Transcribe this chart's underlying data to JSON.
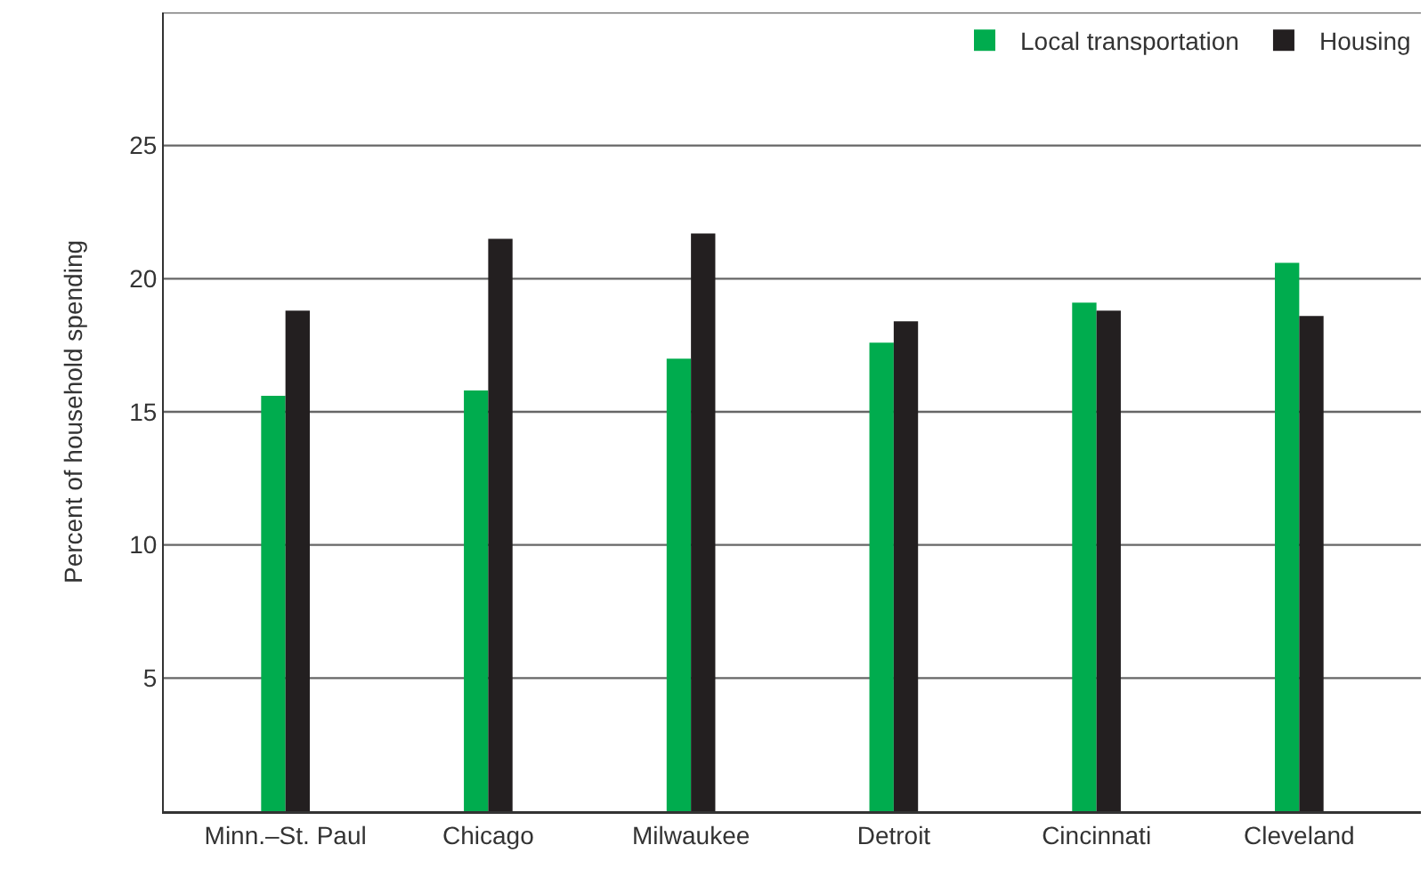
{
  "chart_data": {
    "type": "bar",
    "ylabel": "Percent of household spending",
    "categories": [
      "Minn.–St. Paul",
      "Chicago",
      "Milwaukee",
      "Detroit",
      "Cincinnati",
      "Cleveland"
    ],
    "series": [
      {
        "name": "Local transportation",
        "color": "#00ac4e",
        "values": [
          15.6,
          15.8,
          17.0,
          17.6,
          19.1,
          20.6
        ]
      },
      {
        "name": "Housing",
        "color": "#231f20",
        "values": [
          18.8,
          21.5,
          21.7,
          18.4,
          18.8,
          18.6
        ]
      }
    ],
    "ylim": [
      0,
      30
    ],
    "yticks": [
      5,
      10,
      15,
      20,
      25,
      {
        "value": 30,
        "label": null
      }
    ],
    "grid": "y",
    "legend": "top right"
  }
}
